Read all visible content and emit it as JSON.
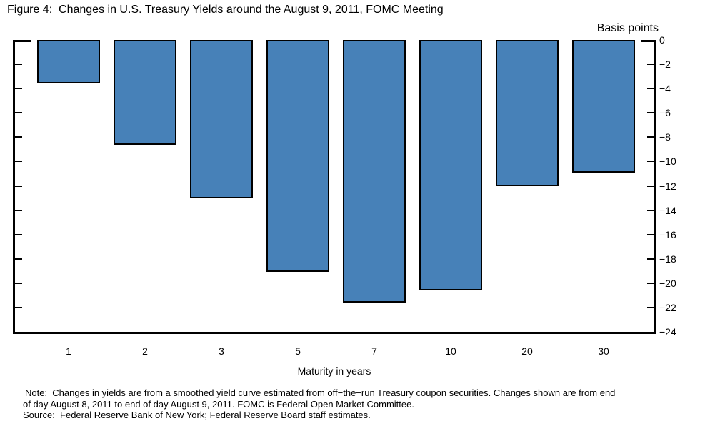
{
  "figure": {
    "title": "Figure 4:  Changes in U.S. Treasury Yields around the August 9, 2011, FOMC Meeting"
  },
  "chart_data": {
    "type": "bar",
    "title": "Changes in U.S. Treasury Yields around the August 9, 2011, FOMC Meeting",
    "categories": [
      "1",
      "2",
      "3",
      "5",
      "7",
      "10",
      "20",
      "30"
    ],
    "values": [
      -3.6,
      -8.6,
      -13.0,
      -19.1,
      -21.6,
      -20.6,
      -12.0,
      -10.9
    ],
    "xlabel": "Maturity in years",
    "ylabel": "Basis points",
    "ylim": [
      0,
      -24
    ],
    "ytick_step": 2,
    "ytick_labels": [
      "0",
      "−2",
      "−4",
      "−6",
      "−8",
      "−10",
      "−12",
      "−14",
      "−16",
      "−18",
      "−20",
      "−22",
      "−24"
    ],
    "ytick_label_side": "right",
    "grid": false,
    "legend_position": "none",
    "bar_color": "#4781B8",
    "bar_border_color": "#000000",
    "axis_color": "#000000"
  },
  "footnote": {
    "lines": [
      "Note:  Changes in yields are from a smoothed yield curve estimated from off−the−run Treasury coupon securities. Changes shown are from end",
      "of day August 8, 2011 to end of day August 9, 2011. FOMC is Federal Open Market Committee.",
      "Source:  Federal Reserve Bank of New York; Federal Reserve Board staff estimates."
    ]
  }
}
